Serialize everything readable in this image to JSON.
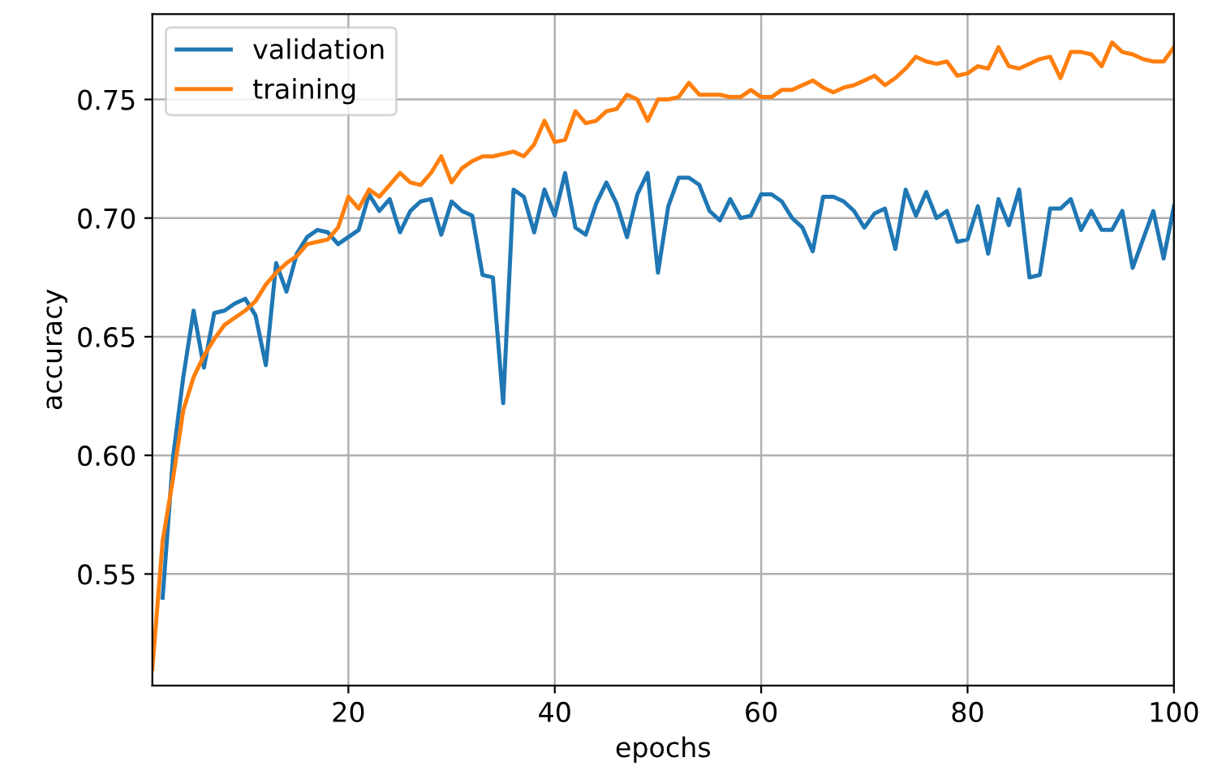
{
  "chart_data": {
    "type": "line",
    "xlabel": "epochs",
    "ylabel": "accuracy",
    "x": [
      1,
      2,
      3,
      4,
      5,
      6,
      7,
      8,
      9,
      10,
      11,
      12,
      13,
      14,
      15,
      16,
      17,
      18,
      19,
      20,
      21,
      22,
      23,
      24,
      25,
      26,
      27,
      28,
      29,
      30,
      31,
      32,
      33,
      34,
      35,
      36,
      37,
      38,
      39,
      40,
      41,
      42,
      43,
      44,
      45,
      46,
      47,
      48,
      49,
      50,
      51,
      52,
      53,
      54,
      55,
      56,
      57,
      58,
      59,
      60,
      61,
      62,
      63,
      64,
      65,
      66,
      67,
      68,
      69,
      70,
      71,
      72,
      73,
      74,
      75,
      76,
      77,
      78,
      79,
      80,
      81,
      82,
      83,
      84,
      85,
      86,
      87,
      88,
      89,
      90,
      91,
      92,
      93,
      94,
      95,
      96,
      97,
      98,
      99,
      100
    ],
    "series": [
      {
        "name": "validation",
        "color": "#1f77b4",
        "values": [
          null,
          0.54,
          0.599,
          0.633,
          0.661,
          0.637,
          0.66,
          0.661,
          0.664,
          0.666,
          0.659,
          0.638,
          0.681,
          0.669,
          0.685,
          0.692,
          0.695,
          0.694,
          0.689,
          0.692,
          0.695,
          0.71,
          0.703,
          0.708,
          0.694,
          0.703,
          0.707,
          0.708,
          0.693,
          0.707,
          0.703,
          0.701,
          0.676,
          0.675,
          0.622,
          0.712,
          0.709,
          0.694,
          0.712,
          0.701,
          0.719,
          0.696,
          0.693,
          0.706,
          0.715,
          0.706,
          0.692,
          0.71,
          0.719,
          0.677,
          0.705,
          0.717,
          0.717,
          0.714,
          0.703,
          0.699,
          0.708,
          0.7,
          0.701,
          0.71,
          0.71,
          0.707,
          0.7,
          0.696,
          0.686,
          0.709,
          0.709,
          0.707,
          0.703,
          0.696,
          0.702,
          0.704,
          0.687,
          0.712,
          0.701,
          0.711,
          0.7,
          0.703,
          0.69,
          0.691,
          0.705,
          0.685,
          0.708,
          0.697,
          0.712,
          0.675,
          0.676,
          0.704,
          0.704,
          0.708,
          0.695,
          0.703,
          0.695,
          0.695,
          0.703,
          0.679,
          0.691,
          0.703,
          0.683,
          0.705
        ]
      },
      {
        "name": "training",
        "color": "#ff7f0e",
        "values": [
          0.51,
          0.564,
          0.59,
          0.619,
          0.633,
          0.642,
          0.649,
          0.655,
          0.658,
          0.661,
          0.665,
          0.672,
          0.677,
          0.681,
          0.684,
          0.689,
          0.69,
          0.691,
          0.696,
          0.709,
          0.704,
          0.712,
          0.709,
          0.714,
          0.719,
          0.715,
          0.714,
          0.719,
          0.726,
          0.715,
          0.721,
          0.724,
          0.726,
          0.726,
          0.727,
          0.728,
          0.726,
          0.731,
          0.741,
          0.732,
          0.733,
          0.745,
          0.74,
          0.741,
          0.745,
          0.746,
          0.752,
          0.75,
          0.741,
          0.75,
          0.75,
          0.751,
          0.757,
          0.752,
          0.752,
          0.752,
          0.751,
          0.751,
          0.754,
          0.751,
          0.751,
          0.754,
          0.754,
          0.756,
          0.758,
          0.755,
          0.753,
          0.755,
          0.756,
          0.758,
          0.76,
          0.756,
          0.759,
          0.763,
          0.768,
          0.766,
          0.765,
          0.766,
          0.76,
          0.761,
          0.764,
          0.763,
          0.772,
          0.764,
          0.763,
          0.765,
          0.767,
          0.768,
          0.759,
          0.77,
          0.77,
          0.769,
          0.764,
          0.774,
          0.77,
          0.769,
          0.767,
          0.766,
          0.766,
          0.772
        ]
      }
    ],
    "xlim": [
      1,
      100
    ],
    "ylim": [
      0.503,
      0.786
    ],
    "xticks": [
      20,
      40,
      60,
      80,
      100
    ],
    "yticks": [
      {
        "value": 0.55,
        "label": "0.55"
      },
      {
        "value": 0.6,
        "label": "0.60"
      },
      {
        "value": 0.65,
        "label": "0.65"
      },
      {
        "value": 0.7,
        "label": "0.70"
      },
      {
        "value": 0.75,
        "label": "0.75"
      }
    ],
    "grid": true,
    "legend": "top left",
    "line_style": "solid",
    "marker": "none"
  }
}
